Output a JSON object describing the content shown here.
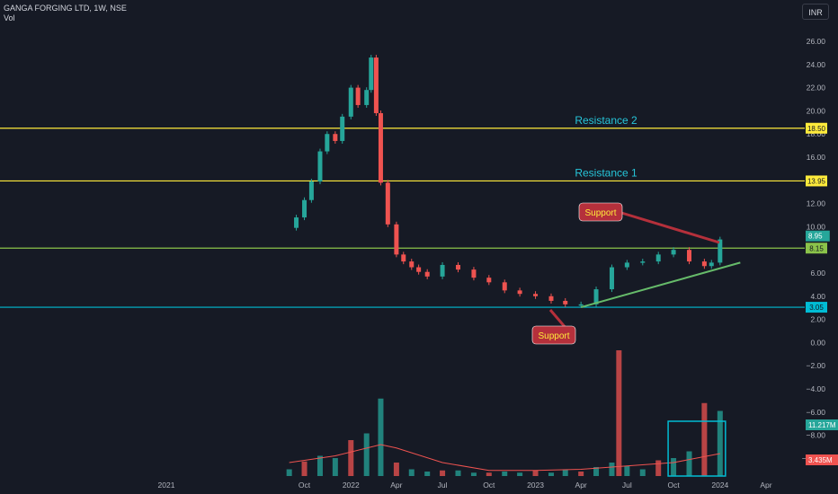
{
  "header": {
    "title": "GANGA FORGING LTD, 1W, NSE",
    "volume_label": "Vol",
    "currency_button": "INR"
  },
  "chart_data": {
    "type": "candlestick",
    "symbol": "GANGA FORGING LTD",
    "interval": "1W",
    "exchange": "NSE",
    "price_axis": {
      "ticks": [
        "26.00",
        "24.00",
        "22.00",
        "20.00",
        "18.00",
        "16.00",
        "14.00",
        "12.00",
        "10.00",
        "8.00",
        "6.00",
        "4.00",
        "2.00",
        "0.00",
        "−2.00",
        "−4.00",
        "−6.00",
        "−8.00",
        "−10.00"
      ],
      "range": [
        -10.8,
        27
      ]
    },
    "time_axis": {
      "ticks": [
        "2021",
        "Oct",
        "2022",
        "Apr",
        "Jul",
        "Oct",
        "2023",
        "Apr",
        "Jul",
        "Oct",
        "2024",
        "Apr"
      ]
    },
    "price_series": [
      [
        "2021-09-01",
        9.9
      ],
      [
        "2021-09-15",
        10.8
      ],
      [
        "2021-10-01",
        12.3
      ],
      [
        "2021-10-15",
        13.9
      ],
      [
        "2021-11-01",
        16.5
      ],
      [
        "2021-11-15",
        18.0
      ],
      [
        "2021-12-01",
        17.4
      ],
      [
        "2021-12-15",
        19.5
      ],
      [
        "2022-01-01",
        22.0
      ],
      [
        "2022-01-15",
        20.5
      ],
      [
        "2022-02-01",
        21.8
      ],
      [
        "2022-02-10",
        24.6
      ],
      [
        "2022-02-20",
        19.8
      ],
      [
        "2022-03-01",
        13.8
      ],
      [
        "2022-03-15",
        10.2
      ],
      [
        "2022-04-01",
        7.6
      ],
      [
        "2022-04-15",
        7.0
      ],
      [
        "2022-05-01",
        6.5
      ],
      [
        "2022-05-15",
        6.1
      ],
      [
        "2022-06-01",
        5.7
      ],
      [
        "2022-07-01",
        6.7
      ],
      [
        "2022-08-01",
        6.3
      ],
      [
        "2022-09-01",
        5.6
      ],
      [
        "2022-10-01",
        5.2
      ],
      [
        "2022-11-01",
        4.5
      ],
      [
        "2022-12-01",
        4.2
      ],
      [
        "2023-01-01",
        4.0
      ],
      [
        "2023-02-01",
        3.6
      ],
      [
        "2023-03-01",
        3.3
      ],
      [
        "2023-04-01",
        3.3
      ],
      [
        "2023-05-01",
        4.6
      ],
      [
        "2023-06-01",
        6.5
      ],
      [
        "2023-07-01",
        6.9
      ],
      [
        "2023-08-01",
        7.0
      ],
      [
        "2023-09-01",
        7.6
      ],
      [
        "2023-10-01",
        8.0
      ],
      [
        "2023-11-01",
        7.0
      ],
      [
        "2023-12-01",
        6.6
      ],
      [
        "2023-12-15",
        6.9
      ],
      [
        "2024-01-01",
        8.9
      ]
    ],
    "volume_series": [
      [
        "2021-09-01",
        0.6
      ],
      [
        "2021-10-01",
        1.3
      ],
      [
        "2021-11-01",
        1.8
      ],
      [
        "2021-12-01",
        1.6
      ],
      [
        "2022-01-01",
        3.2
      ],
      [
        "2022-02-01",
        3.8
      ],
      [
        "2022-03-01",
        6.9
      ],
      [
        "2022-04-01",
        1.2
      ],
      [
        "2022-05-01",
        0.6
      ],
      [
        "2022-06-01",
        0.4
      ],
      [
        "2022-07-01",
        0.5
      ],
      [
        "2022-08-01",
        0.5
      ],
      [
        "2022-09-01",
        0.3
      ],
      [
        "2022-10-01",
        0.3
      ],
      [
        "2022-11-01",
        0.4
      ],
      [
        "2022-12-01",
        0.3
      ],
      [
        "2023-01-01",
        0.5
      ],
      [
        "2023-02-01",
        0.3
      ],
      [
        "2023-03-01",
        0.6
      ],
      [
        "2023-04-01",
        0.4
      ],
      [
        "2023-05-01",
        0.8
      ],
      [
        "2023-06-01",
        1.2
      ],
      [
        "2023-06-15",
        11.2
      ],
      [
        "2023-07-01",
        0.9
      ],
      [
        "2023-08-01",
        0.6
      ],
      [
        "2023-09-01",
        1.4
      ],
      [
        "2023-10-01",
        1.6
      ],
      [
        "2023-11-01",
        2.2
      ],
      [
        "2023-12-01",
        6.5
      ],
      [
        "2024-01-01",
        5.8
      ]
    ],
    "volume_ma": [
      [
        "2021-09-01",
        1.2
      ],
      [
        "2021-12-01",
        1.8
      ],
      [
        "2022-03-01",
        2.8
      ],
      [
        "2022-04-01",
        2.5
      ],
      [
        "2022-07-01",
        1.2
      ],
      [
        "2022-10-01",
        0.5
      ],
      [
        "2023-01-01",
        0.5
      ],
      [
        "2023-04-01",
        0.6
      ],
      [
        "2023-07-01",
        0.9
      ],
      [
        "2023-10-01",
        1.2
      ],
      [
        "2024-01-01",
        2.0
      ]
    ],
    "horizontal_lines": [
      {
        "price": 18.5,
        "label": "18.50",
        "color": "#ffeb3b",
        "annotation": "Resistance 2"
      },
      {
        "price": 13.95,
        "label": "13.95",
        "color": "#ffeb3b",
        "annotation": "Resistance 1"
      },
      {
        "price": 8.15,
        "label": "8.15",
        "color": "#8bc34a",
        "annotation": ""
      },
      {
        "price": 3.05,
        "label": "3.05",
        "color": "#00bcd4",
        "annotation": ""
      }
    ],
    "trendline": {
      "from": [
        "2023-04-01",
        3.05
      ],
      "to": [
        "2024-02-10",
        6.9
      ],
      "color": "#66bb6a"
    },
    "callouts": [
      "Support",
      "Support"
    ],
    "price_labels": {
      "last_price": "8.95",
      "volume_last": "11.217M",
      "volume_ma": "3.435M"
    },
    "colors": {
      "up": "#26a69a",
      "down": "#ef5350",
      "background": "#161a25",
      "resistance": "#ffeb3b",
      "support_cyan": "#00bcd4",
      "support_green": "#8bc34a",
      "annotation_text": "#26c6da",
      "callout_bg": "#b5303b",
      "callout_text": "#ffeb3b",
      "volume_ma": "#ef5350",
      "volume_box": "#00bcd4"
    }
  }
}
